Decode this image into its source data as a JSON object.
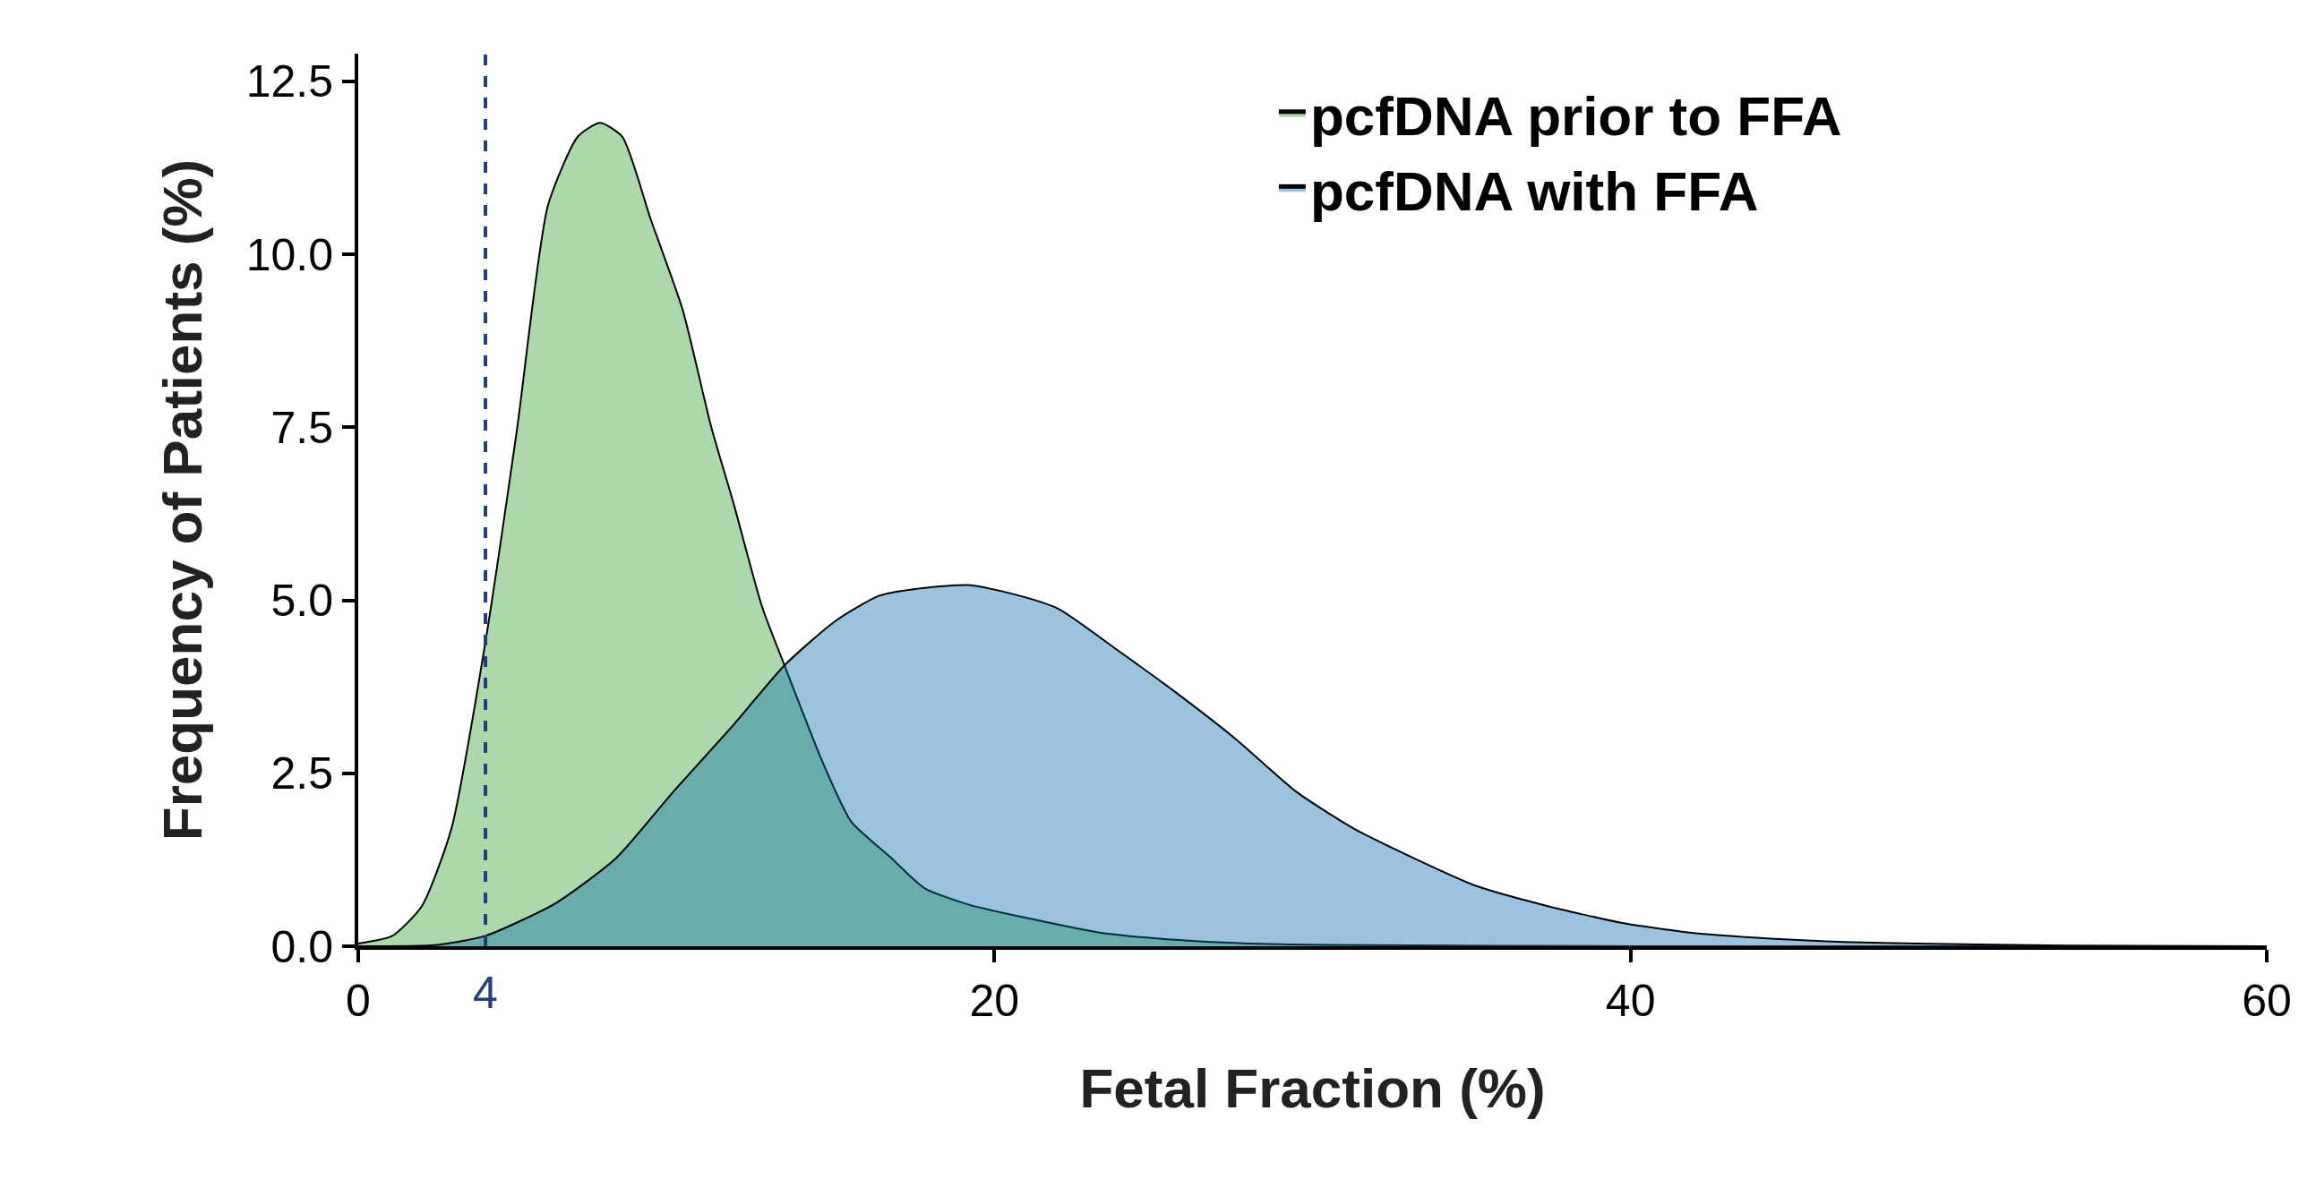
{
  "chart_data": {
    "type": "area",
    "xlabel": "Fetal Fraction (%)",
    "ylabel": "Frequency of Patients (%)",
    "xlim": [
      0,
      60
    ],
    "xticks": [
      0,
      20,
      40,
      60
    ],
    "ylim": [
      0,
      12.9
    ],
    "yticks": [
      {
        "value": 0,
        "label": "0.0"
      },
      2.5,
      {
        "value": 5,
        "label": "5.0"
      },
      7.5,
      {
        "value": 10,
        "label": "10.0"
      },
      12.5
    ],
    "series": [
      {
        "name": "pcfDNA prior to FFA",
        "color": "#2ca02c",
        "x": [
          0,
          1.07,
          2,
          2.93,
          4,
          5,
          5.96,
          6.9,
          7.6,
          8.3,
          9.2,
          10.2,
          11.1,
          11.8,
          12.7,
          13.4,
          14.6,
          15.5,
          16.7,
          17.8,
          19.2,
          21.1,
          23.4,
          25.8,
          28,
          30.4,
          40,
          60
        ],
        "values": [
          0.04,
          0.15,
          0.58,
          1.7,
          4.4,
          7.5,
          10.7,
          11.7,
          11.9,
          11.7,
          10.5,
          9.2,
          7.5,
          6.4,
          4.9,
          4.06,
          2.66,
          1.8,
          1.3,
          0.84,
          0.6,
          0.4,
          0.19,
          0.09,
          0.04,
          0.02,
          0,
          0
        ]
      },
      {
        "name": "pcfDNA with FFA",
        "color": "#0868ac",
        "x": [
          0,
          2.5,
          4,
          6.2,
          8.1,
          9.9,
          11.8,
          13.4,
          15,
          16.4,
          17.8,
          19.2,
          20.6,
          22,
          23.9,
          25.7,
          27.6,
          29.5,
          31.3,
          33.2,
          35.1,
          37.4,
          39.7,
          42,
          44.4,
          46.7,
          49,
          53.7,
          60
        ],
        "values": [
          0,
          0.02,
          0.15,
          0.62,
          1.27,
          2.23,
          3.2,
          4.06,
          4.7,
          5.07,
          5.18,
          5.22,
          5.09,
          4.88,
          4.27,
          3.67,
          2.99,
          2.23,
          1.7,
          1.27,
          0.88,
          0.58,
          0.34,
          0.19,
          0.11,
          0.06,
          0.04,
          0.01,
          0
        ]
      }
    ],
    "ref_lines": [
      {
        "axis": "x",
        "value": 4,
        "label": "4",
        "color": "#1f3f7a",
        "line_style": "dashed"
      }
    ],
    "legend": "top right"
  }
}
